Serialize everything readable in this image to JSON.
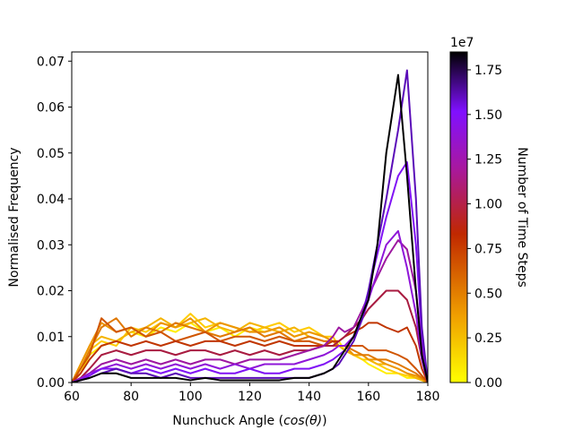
{
  "chart_data": {
    "type": "line",
    "title": "",
    "xlabel": "Nunchuck Angle (cos(θ))",
    "xlabel_main": "Nunchuck Angle (",
    "xlabel_math": "cos(θ)",
    "xlabel_end": ")",
    "ylabel": "Normalised Frequency",
    "xlim": [
      60,
      180
    ],
    "ylim": [
      0,
      0.072
    ],
    "xticks": [
      60,
      80,
      100,
      120,
      140,
      160,
      180
    ],
    "xtick_labels": [
      "60",
      "80",
      "100",
      "120",
      "140",
      "160",
      "180"
    ],
    "yticks": [
      0,
      0.01,
      0.02,
      0.03,
      0.04,
      0.05,
      0.06,
      0.07
    ],
    "ytick_labels": [
      "0.00",
      "0.01",
      "0.02",
      "0.03",
      "0.04",
      "0.05",
      "0.06",
      "0.07"
    ],
    "colorbar": {
      "label": "Number of Time Steps",
      "offset_label": "1e7",
      "range": [
        0,
        1.85
      ],
      "ticks": [
        0,
        0.25,
        0.5,
        0.75,
        1.0,
        1.25,
        1.5,
        1.75
      ],
      "tick_labels": [
        "0.00",
        "0.25",
        "0.50",
        "0.75",
        "1.00",
        "1.25",
        "1.50",
        "1.75"
      ],
      "colormap": "gnuplot"
    },
    "series": [
      {
        "t": 0.0,
        "color": "#ffee00",
        "x": [
          60,
          63,
          66,
          70,
          75,
          80,
          85,
          90,
          95,
          100,
          105,
          110,
          115,
          120,
          125,
          130,
          135,
          140,
          145,
          148,
          150,
          152,
          155,
          158,
          160,
          163,
          166,
          170,
          173,
          176,
          178,
          180
        ],
        "y": [
          0,
          0.002,
          0.006,
          0.008,
          0.009,
          0.011,
          0.01,
          0.012,
          0.011,
          0.013,
          0.011,
          0.012,
          0.01,
          0.012,
          0.011,
          0.012,
          0.01,
          0.011,
          0.01,
          0.009,
          0.009,
          0.007,
          0.006,
          0.005,
          0.004,
          0.003,
          0.002,
          0.002,
          0.001,
          0.001,
          0.0005,
          0
        ]
      },
      {
        "t": 0.05,
        "color": "#ffcc00",
        "x": [
          60,
          63,
          66,
          70,
          75,
          80,
          85,
          90,
          95,
          100,
          105,
          110,
          115,
          120,
          125,
          130,
          135,
          140,
          145,
          148,
          150,
          152,
          155,
          158,
          160,
          163,
          166,
          170,
          173,
          176,
          178,
          180
        ],
        "y": [
          0,
          0.003,
          0.007,
          0.009,
          0.008,
          0.012,
          0.011,
          0.013,
          0.012,
          0.015,
          0.012,
          0.013,
          0.012,
          0.011,
          0.012,
          0.013,
          0.011,
          0.012,
          0.01,
          0.01,
          0.008,
          0.008,
          0.006,
          0.005,
          0.005,
          0.004,
          0.003,
          0.002,
          0.0015,
          0.001,
          0.0005,
          0
        ]
      },
      {
        "t": 0.2,
        "color": "#f4b400",
        "x": [
          60,
          63,
          66,
          70,
          75,
          80,
          85,
          90,
          95,
          100,
          105,
          110,
          115,
          120,
          125,
          130,
          135,
          140,
          145,
          148,
          150,
          152,
          155,
          158,
          160,
          163,
          166,
          170,
          173,
          176,
          178,
          180
        ],
        "y": [
          0,
          0.004,
          0.008,
          0.01,
          0.009,
          0.011,
          0.012,
          0.014,
          0.012,
          0.013,
          0.014,
          0.012,
          0.011,
          0.013,
          0.012,
          0.011,
          0.012,
          0.01,
          0.009,
          0.009,
          0.008,
          0.007,
          0.006,
          0.006,
          0.005,
          0.004,
          0.004,
          0.003,
          0.002,
          0.001,
          0.0005,
          0
        ]
      },
      {
        "t": 0.35,
        "color": "#ec9500",
        "x": [
          60,
          63,
          66,
          70,
          75,
          80,
          85,
          90,
          95,
          100,
          105,
          110,
          115,
          120,
          125,
          130,
          135,
          140,
          145,
          148,
          150,
          152,
          155,
          158,
          160,
          163,
          166,
          170,
          173,
          176,
          178,
          180
        ],
        "y": [
          0,
          0.004,
          0.008,
          0.013,
          0.011,
          0.012,
          0.01,
          0.013,
          0.012,
          0.014,
          0.011,
          0.013,
          0.012,
          0.011,
          0.011,
          0.012,
          0.01,
          0.011,
          0.01,
          0.009,
          0.008,
          0.008,
          0.006,
          0.006,
          0.005,
          0.005,
          0.004,
          0.003,
          0.002,
          0.0015,
          0.0008,
          0
        ]
      },
      {
        "t": 0.5,
        "color": "#e07800",
        "x": [
          60,
          63,
          66,
          70,
          75,
          80,
          85,
          90,
          95,
          100,
          105,
          110,
          115,
          120,
          125,
          130,
          135,
          140,
          145,
          148,
          150,
          152,
          155,
          158,
          160,
          163,
          166,
          170,
          173,
          176,
          178,
          180
        ],
        "y": [
          0,
          0.003,
          0.007,
          0.012,
          0.014,
          0.01,
          0.012,
          0.011,
          0.013,
          0.012,
          0.011,
          0.01,
          0.011,
          0.012,
          0.01,
          0.011,
          0.009,
          0.01,
          0.009,
          0.009,
          0.008,
          0.008,
          0.007,
          0.006,
          0.006,
          0.005,
          0.005,
          0.004,
          0.003,
          0.002,
          0.001,
          0
        ]
      },
      {
        "t": 0.7,
        "color": "#d05500",
        "x": [
          60,
          63,
          66,
          70,
          75,
          80,
          85,
          90,
          95,
          100,
          105,
          110,
          115,
          120,
          125,
          130,
          135,
          140,
          145,
          148,
          150,
          152,
          155,
          158,
          160,
          163,
          166,
          170,
          173,
          176,
          178,
          180
        ],
        "y": [
          0,
          0.003,
          0.006,
          0.014,
          0.011,
          0.012,
          0.01,
          0.011,
          0.009,
          0.01,
          0.011,
          0.009,
          0.01,
          0.01,
          0.009,
          0.01,
          0.009,
          0.009,
          0.008,
          0.008,
          0.008,
          0.008,
          0.008,
          0.008,
          0.007,
          0.007,
          0.007,
          0.006,
          0.005,
          0.003,
          0.0015,
          0
        ]
      },
      {
        "t": 0.85,
        "color": "#c03500",
        "x": [
          60,
          63,
          66,
          70,
          75,
          80,
          85,
          90,
          95,
          100,
          105,
          110,
          115,
          120,
          125,
          130,
          135,
          140,
          145,
          148,
          150,
          152,
          155,
          158,
          160,
          163,
          166,
          170,
          173,
          176,
          178,
          180
        ],
        "y": [
          0,
          0.002,
          0.005,
          0.008,
          0.009,
          0.008,
          0.009,
          0.008,
          0.009,
          0.008,
          0.009,
          0.009,
          0.008,
          0.009,
          0.008,
          0.009,
          0.008,
          0.008,
          0.008,
          0.009,
          0.009,
          0.01,
          0.011,
          0.012,
          0.013,
          0.013,
          0.012,
          0.011,
          0.012,
          0.008,
          0.003,
          0
        ]
      },
      {
        "t": 1.0,
        "color": "#a81b40",
        "x": [
          60,
          63,
          66,
          70,
          75,
          80,
          85,
          90,
          95,
          100,
          105,
          110,
          115,
          120,
          125,
          130,
          135,
          140,
          145,
          148,
          150,
          152,
          155,
          158,
          160,
          163,
          166,
          170,
          173,
          176,
          178,
          180
        ],
        "y": [
          0,
          0.001,
          0.003,
          0.006,
          0.007,
          0.006,
          0.007,
          0.007,
          0.006,
          0.007,
          0.007,
          0.006,
          0.007,
          0.006,
          0.007,
          0.006,
          0.007,
          0.007,
          0.008,
          0.008,
          0.009,
          0.01,
          0.012,
          0.014,
          0.016,
          0.018,
          0.02,
          0.02,
          0.018,
          0.012,
          0.005,
          0
        ]
      },
      {
        "t": 1.15,
        "color": "#9d17a0",
        "x": [
          60,
          63,
          66,
          70,
          75,
          80,
          85,
          90,
          95,
          100,
          105,
          110,
          115,
          120,
          125,
          130,
          135,
          140,
          145,
          148,
          150,
          152,
          155,
          158,
          160,
          163,
          166,
          170,
          173,
          176,
          178,
          180
        ],
        "y": [
          0,
          0.001,
          0.002,
          0.004,
          0.005,
          0.004,
          0.005,
          0.004,
          0.005,
          0.004,
          0.005,
          0.005,
          0.004,
          0.005,
          0.005,
          0.005,
          0.006,
          0.007,
          0.008,
          0.01,
          0.012,
          0.011,
          0.012,
          0.016,
          0.019,
          0.023,
          0.027,
          0.031,
          0.029,
          0.02,
          0.008,
          0
        ]
      },
      {
        "t": 1.3,
        "color": "#8f15d8",
        "x": [
          60,
          63,
          66,
          70,
          75,
          80,
          85,
          90,
          95,
          100,
          105,
          110,
          115,
          120,
          125,
          130,
          135,
          140,
          145,
          148,
          150,
          152,
          155,
          158,
          160,
          163,
          166,
          170,
          173,
          176,
          178,
          180
        ],
        "y": [
          0,
          0.0008,
          0.002,
          0.003,
          0.004,
          0.003,
          0.004,
          0.003,
          0.004,
          0.003,
          0.004,
          0.003,
          0.004,
          0.003,
          0.004,
          0.004,
          0.004,
          0.005,
          0.006,
          0.007,
          0.008,
          0.008,
          0.01,
          0.014,
          0.018,
          0.024,
          0.03,
          0.033,
          0.025,
          0.015,
          0.005,
          0
        ]
      },
      {
        "t": 1.45,
        "color": "#8012f5",
        "x": [
          60,
          63,
          66,
          70,
          75,
          80,
          85,
          90,
          95,
          100,
          105,
          110,
          115,
          120,
          125,
          130,
          135,
          140,
          145,
          148,
          150,
          152,
          155,
          158,
          160,
          163,
          166,
          170,
          173,
          176,
          178,
          180
        ],
        "y": [
          0,
          0.0005,
          0.0015,
          0.003,
          0.003,
          0.002,
          0.003,
          0.002,
          0.003,
          0.002,
          0.003,
          0.002,
          0.002,
          0.003,
          0.002,
          0.002,
          0.003,
          0.003,
          0.004,
          0.005,
          0.006,
          0.007,
          0.01,
          0.015,
          0.02,
          0.028,
          0.036,
          0.045,
          0.048,
          0.03,
          0.01,
          0
        ]
      },
      {
        "t": 1.6,
        "color": "#5a0cb8",
        "x": [
          60,
          63,
          66,
          70,
          75,
          80,
          85,
          90,
          95,
          100,
          105,
          110,
          115,
          120,
          125,
          130,
          135,
          140,
          145,
          148,
          150,
          152,
          155,
          158,
          160,
          163,
          166,
          170,
          173,
          176,
          178,
          180
        ],
        "y": [
          0,
          0.0005,
          0.001,
          0.002,
          0.003,
          0.002,
          0.002,
          0.001,
          0.002,
          0.001,
          0.001,
          0.001,
          0.001,
          0.001,
          0.001,
          0.001,
          0.001,
          0.001,
          0.002,
          0.003,
          0.004,
          0.006,
          0.009,
          0.014,
          0.02,
          0.03,
          0.04,
          0.055,
          0.068,
          0.04,
          0.012,
          0
        ]
      },
      {
        "t": 1.8,
        "color": "#000000",
        "x": [
          60,
          63,
          66,
          70,
          75,
          80,
          85,
          90,
          95,
          100,
          105,
          110,
          115,
          120,
          125,
          130,
          135,
          140,
          145,
          148,
          150,
          152,
          155,
          158,
          160,
          163,
          166,
          170,
          173,
          176,
          178,
          180
        ],
        "y": [
          0,
          0.0005,
          0.001,
          0.002,
          0.002,
          0.001,
          0.001,
          0.001,
          0.001,
          0.0005,
          0.001,
          0.0005,
          0.0005,
          0.0005,
          0.0005,
          0.0005,
          0.001,
          0.001,
          0.002,
          0.003,
          0.005,
          0.007,
          0.01,
          0.015,
          0.018,
          0.03,
          0.05,
          0.067,
          0.045,
          0.02,
          0.006,
          0
        ]
      }
    ]
  }
}
